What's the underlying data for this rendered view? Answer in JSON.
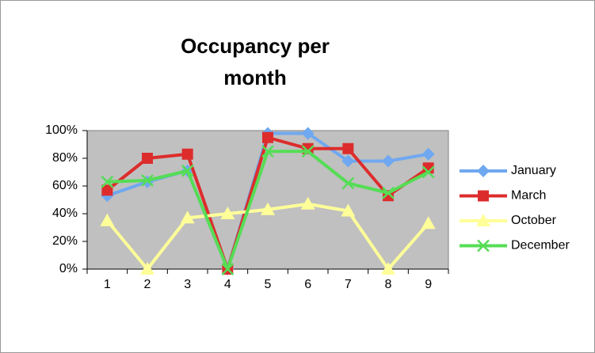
{
  "chart_data": {
    "type": "line",
    "title": [
      "Occupancy per",
      "month"
    ],
    "categories": [
      "1",
      "2",
      "3",
      "4",
      "5",
      "6",
      "7",
      "8",
      "9"
    ],
    "series": [
      {
        "name": "January",
        "color": "#6fa8f0",
        "marker": "diamond",
        "values": [
          53,
          63,
          71,
          0,
          98,
          98,
          78,
          78,
          83
        ]
      },
      {
        "name": "March",
        "color": "#dd2c2c",
        "marker": "square",
        "values": [
          57,
          80,
          83,
          0,
          95,
          87,
          87,
          53,
          73
        ]
      },
      {
        "name": "October",
        "color": "#ffff99",
        "marker": "triangle",
        "values": [
          35,
          0,
          37,
          40,
          43,
          47,
          42,
          0,
          33
        ]
      },
      {
        "name": "December",
        "color": "#55dd55",
        "marker": "x",
        "values": [
          63,
          64,
          71,
          0,
          85,
          85,
          62,
          55,
          70
        ]
      }
    ],
    "ylim": [
      0,
      100
    ],
    "yticks": [
      {
        "value": 0,
        "label": "0%"
      },
      {
        "value": 20,
        "label": "20%"
      },
      {
        "value": 40,
        "label": "40%"
      },
      {
        "value": 60,
        "label": "60%"
      },
      {
        "value": 80,
        "label": "80%"
      },
      {
        "value": 100,
        "label": "100%"
      }
    ],
    "legend": "right",
    "plot_background": "#c0c0c0"
  }
}
